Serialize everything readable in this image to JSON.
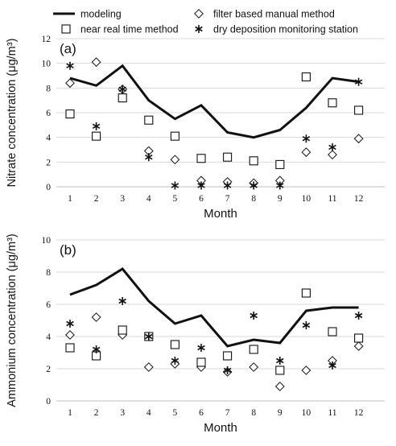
{
  "legend": [
    {
      "label": "modeling",
      "marker": "line"
    },
    {
      "label": "filter based manual method",
      "marker": "diamond"
    },
    {
      "label": "near real time method",
      "marker": "square"
    },
    {
      "label": "dry deposition monitoring station",
      "marker": "asterisk"
    }
  ],
  "chart_data": [
    {
      "type": "line",
      "panel_label": "(a)",
      "xlabel": "Month",
      "ylabel": "Nitrate concentration (μg/m³)",
      "ylim": [
        0,
        12
      ],
      "yticks": [
        "0",
        "2",
        "4",
        "6",
        "8",
        "10",
        "12"
      ],
      "categories": [
        "1",
        "2",
        "3",
        "4",
        "5",
        "6",
        "7",
        "8",
        "9",
        "10",
        "11",
        "12"
      ],
      "grid": true,
      "series": [
        {
          "name": "modeling",
          "marker": "line",
          "values": [
            8.8,
            8.2,
            9.8,
            7.0,
            5.5,
            6.6,
            4.4,
            4.0,
            4.6,
            6.4,
            8.8,
            8.5
          ]
        },
        {
          "name": "filter based manual method",
          "marker": "diamond",
          "values": [
            8.4,
            10.1,
            7.9,
            2.9,
            2.2,
            0.5,
            0.4,
            0.3,
            0.5,
            2.8,
            2.6,
            3.9
          ]
        },
        {
          "name": "near real time method",
          "marker": "square",
          "values": [
            5.9,
            4.1,
            7.2,
            5.4,
            4.1,
            2.3,
            2.4,
            2.1,
            1.8,
            8.9,
            6.8,
            6.2
          ]
        },
        {
          "name": "dry deposition monitoring station",
          "marker": "asterisk",
          "values": [
            9.8,
            4.9,
            7.9,
            2.4,
            0.1,
            0.1,
            0.1,
            0.1,
            0.1,
            3.9,
            3.2,
            8.5
          ]
        }
      ]
    },
    {
      "type": "line",
      "panel_label": "(b)",
      "xlabel": "Month",
      "ylabel": "Ammonium concentration (μg/m³)",
      "ylim": [
        0,
        10
      ],
      "yticks": [
        "0",
        "2",
        "4",
        "6",
        "8",
        "10"
      ],
      "categories": [
        "1",
        "2",
        "3",
        "4",
        "5",
        "6",
        "7",
        "8",
        "9",
        "10",
        "11",
        "12"
      ],
      "grid": true,
      "series": [
        {
          "name": "modeling",
          "marker": "line",
          "values": [
            6.6,
            7.2,
            8.2,
            6.2,
            4.8,
            5.3,
            3.4,
            3.8,
            3.6,
            5.6,
            5.8,
            5.8
          ]
        },
        {
          "name": "filter based manual method",
          "marker": "diamond",
          "values": [
            4.1,
            5.2,
            4.1,
            2.1,
            2.3,
            2.1,
            1.8,
            2.1,
            0.9,
            1.9,
            2.5,
            3.4
          ]
        },
        {
          "name": "near real time method",
          "marker": "square",
          "values": [
            3.3,
            2.8,
            4.4,
            4.0,
            3.5,
            2.4,
            2.8,
            3.2,
            1.9,
            6.7,
            4.3,
            3.9
          ]
        },
        {
          "name": "dry deposition monitoring station",
          "marker": "asterisk",
          "values": [
            4.8,
            3.2,
            6.2,
            4.0,
            2.5,
            3.3,
            1.9,
            5.3,
            2.5,
            4.7,
            2.2,
            5.3
          ]
        }
      ]
    }
  ]
}
